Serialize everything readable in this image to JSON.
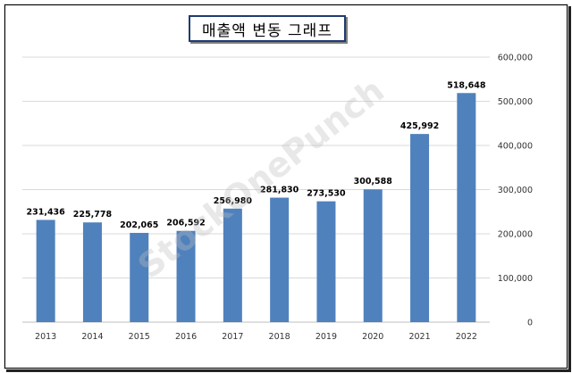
{
  "chart_data": {
    "type": "bar",
    "title": "매출액 변동 그래프",
    "categories": [
      "2013",
      "2014",
      "2015",
      "2016",
      "2017",
      "2018",
      "2019",
      "2020",
      "2021",
      "2022"
    ],
    "values": [
      231436,
      225778,
      202065,
      206592,
      256980,
      281830,
      273530,
      300588,
      425992,
      518648
    ],
    "value_labels": [
      "231,436",
      "225,778",
      "202,065",
      "206,592",
      "256,980",
      "281,830",
      "273,530",
      "300,588",
      "425,992",
      "518,648"
    ],
    "ylim": [
      0,
      600000
    ],
    "y_ticks": [
      "0",
      "100,000",
      "200,000",
      "300,000",
      "400,000",
      "500,000",
      "600,000"
    ],
    "y_axis_side": "right",
    "grid": true,
    "bar_color": "#4f81bd",
    "watermark": "StockOnePunch"
  }
}
